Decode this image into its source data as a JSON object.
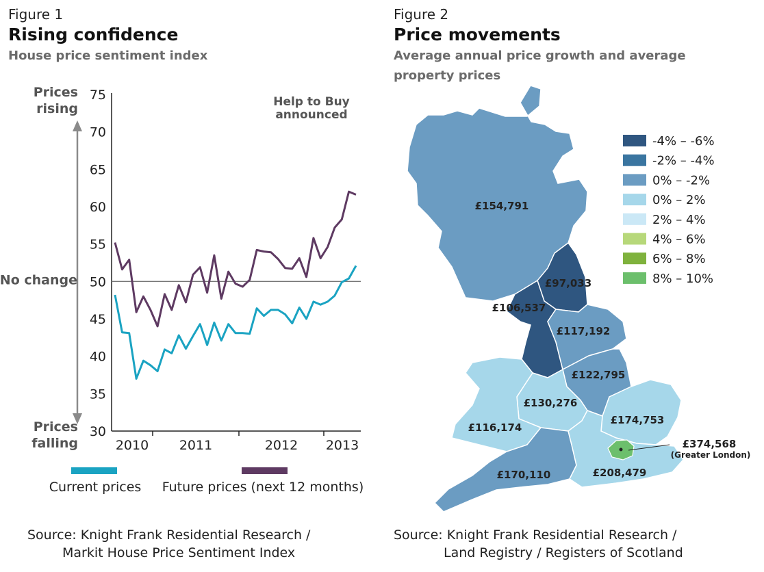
{
  "figure1": {
    "label": "Figure 1",
    "title": "Rising confidence",
    "subtitle": "House price sentiment index",
    "prices_rising": [
      "Prices",
      "rising"
    ],
    "prices_falling": [
      "Prices",
      "falling"
    ],
    "no_change": "No change",
    "annotation": [
      "Help to Buy",
      "announced"
    ],
    "source": [
      "Source: Knight Frank Residential Research /",
      "Markit House Price Sentiment Index"
    ]
  },
  "figure2": {
    "label": "Figure 2",
    "title": "Price movements",
    "subtitle": [
      "Average annual price growth and average",
      "property prices"
    ],
    "source": [
      "Source: Knight Frank Residential Research /",
      "Land Registry / Registers of Scotland"
    ]
  },
  "chart_data": [
    {
      "type": "line",
      "title": "Rising confidence",
      "subtitle": "House price sentiment index",
      "ylim": [
        30,
        75
      ],
      "yticks": [
        30,
        35,
        40,
        45,
        50,
        55,
        60,
        65,
        70,
        75
      ],
      "year_labels": [
        "2010",
        "2011",
        "2012",
        "2013"
      ],
      "reference_line": {
        "value": 50,
        "label": "No change"
      },
      "event_marker": {
        "period_index": 40,
        "label": "Help to Buy announced"
      },
      "series": [
        {
          "name": "Current prices",
          "color": "#1aa3c2",
          "values": [
            48.2,
            43.2,
            43.1,
            37.0,
            39.4,
            38.8,
            38.0,
            40.9,
            40.4,
            42.8,
            41.0,
            42.7,
            44.3,
            41.5,
            44.5,
            42.1,
            44.3,
            43.1,
            43.1,
            43.0,
            46.4,
            45.4,
            46.2,
            46.2,
            45.6,
            44.4,
            46.5,
            45.0,
            47.3,
            46.9,
            47.3,
            48.1,
            49.9,
            50.4,
            52.1
          ]
        },
        {
          "name": "Future prices (next 12 months)",
          "color": "#5e3a62",
          "values": [
            55.2,
            51.6,
            52.9,
            45.9,
            48.0,
            46.2,
            44.0,
            48.3,
            46.2,
            49.5,
            47.2,
            50.9,
            51.9,
            48.5,
            53.5,
            47.7,
            51.3,
            49.7,
            49.3,
            50.2,
            54.2,
            54.0,
            53.9,
            53.0,
            51.8,
            51.7,
            53.1,
            50.6,
            55.8,
            53.1,
            54.6,
            57.2,
            58.3,
            62.0,
            61.6
          ]
        }
      ]
    },
    {
      "type": "table",
      "title": "Price movements",
      "legend": [
        {
          "label": "-4% – -6%",
          "color": "#2f5680"
        },
        {
          "label": "-2% – -4%",
          "color": "#3a75a0"
        },
        {
          "label": "0% – -2%",
          "color": "#6b9cc2"
        },
        {
          "label": "0% – 2%",
          "color": "#a6d7ea"
        },
        {
          "label": "2% – 4%",
          "color": "#cbe8f6"
        },
        {
          "label": "4% – 6%",
          "color": "#b7d87a"
        },
        {
          "label": "6% – 8%",
          "color": "#7fb23d"
        },
        {
          "label": "8% – 10%",
          "color": "#6cbf6c"
        }
      ],
      "regions": [
        {
          "name": "Scotland",
          "price": "£154,791",
          "band": "0% – -2%"
        },
        {
          "name": "North East",
          "price": "£97,033",
          "band": "-4% – -6%"
        },
        {
          "name": "North West",
          "price": "£106,537",
          "band": "-4% – -6%"
        },
        {
          "name": "Yorkshire",
          "price": "£117,192",
          "band": "0% – -2%"
        },
        {
          "name": "East Midlands",
          "price": "£122,795",
          "band": "0% – -2%"
        },
        {
          "name": "West Midlands",
          "price": "£130,276",
          "band": "0% – 2%"
        },
        {
          "name": "Wales",
          "price": "£116,174",
          "band": "0% – 2%"
        },
        {
          "name": "East",
          "price": "£174,753",
          "band": "0% – 2%"
        },
        {
          "name": "South West",
          "price": "£170,110",
          "band": "0% – -2%"
        },
        {
          "name": "South East",
          "price": "£208,479",
          "band": "0% – 2%"
        },
        {
          "name": "Greater London",
          "price": "£374,568",
          "note": "(Greater London)",
          "band": "8% – 10%"
        }
      ]
    }
  ]
}
